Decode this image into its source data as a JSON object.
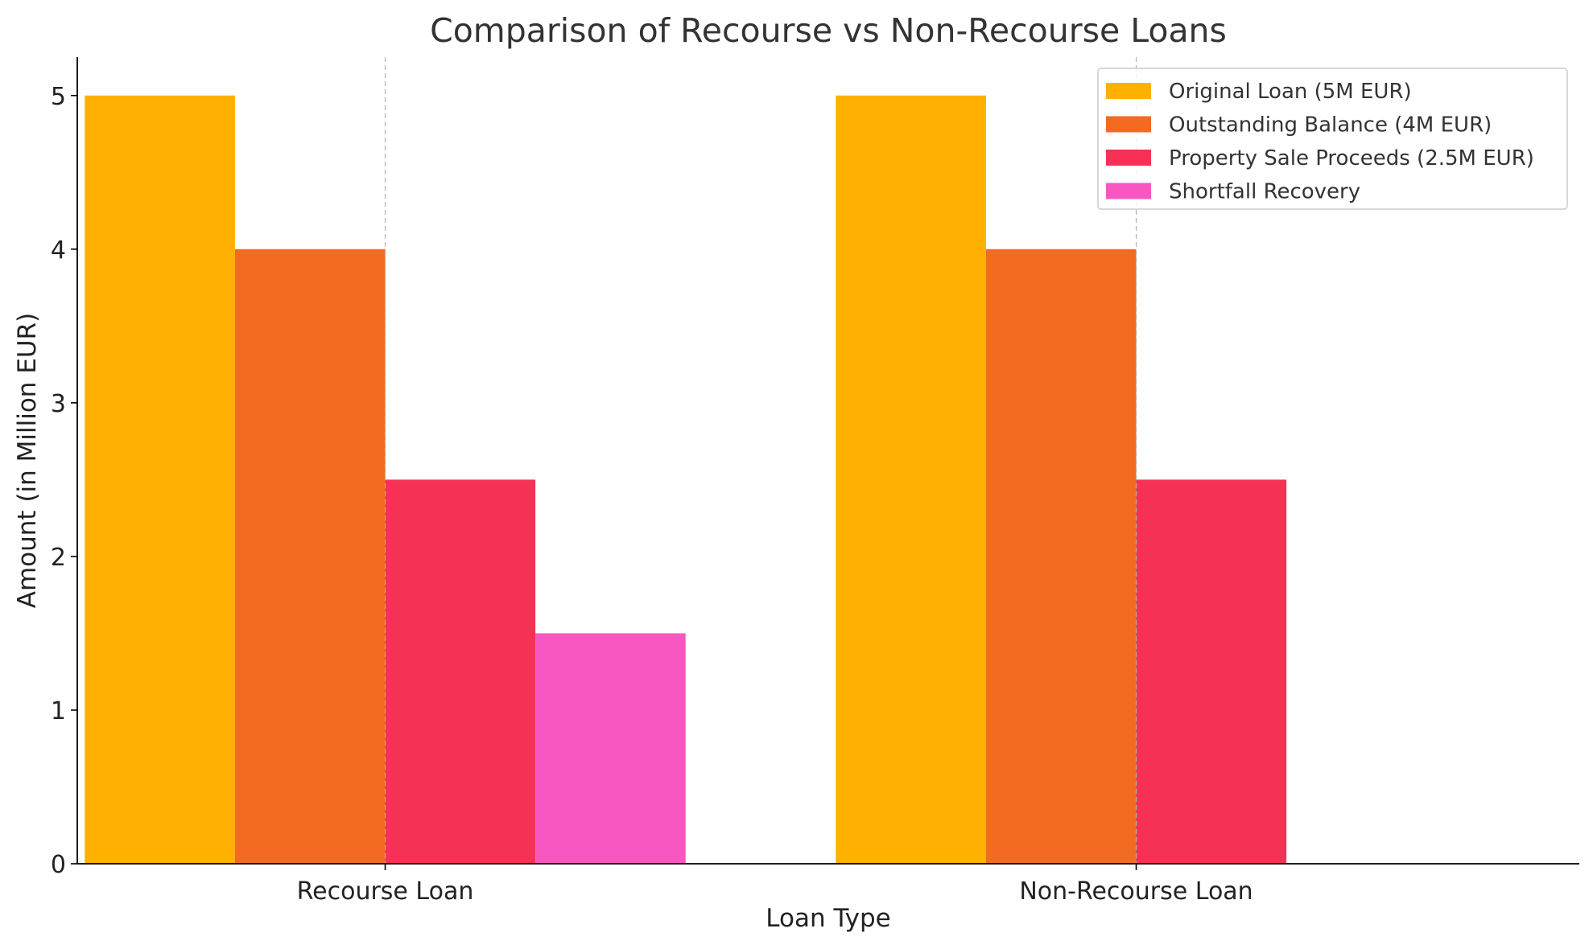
{
  "chart_data": {
    "type": "bar",
    "title": "Comparison of Recourse vs Non-Recourse Loans",
    "xlabel": "Loan Type",
    "ylabel": "Amount (in Million EUR)",
    "categories": [
      "Recourse Loan",
      "Non-Recourse Loan"
    ],
    "ylim": [
      0,
      5.25
    ],
    "yticks": [
      0,
      1,
      2,
      3,
      4,
      5
    ],
    "grid": "vertical dashed at category centers",
    "legend_position": "top-right",
    "series": [
      {
        "name": "Original Loan (5M EUR)",
        "color": "#FFB000",
        "values": [
          5,
          5
        ]
      },
      {
        "name": "Outstanding Balance (4M EUR)",
        "color": "#F26B21",
        "values": [
          4,
          4
        ]
      },
      {
        "name": "Property Sale Proceeds (2.5M EUR)",
        "color": "#F53255",
        "values": [
          2.5,
          2.5
        ]
      },
      {
        "name": "Shortfall Recovery",
        "color": "#F857C1",
        "values": [
          1.5,
          0
        ]
      }
    ]
  }
}
